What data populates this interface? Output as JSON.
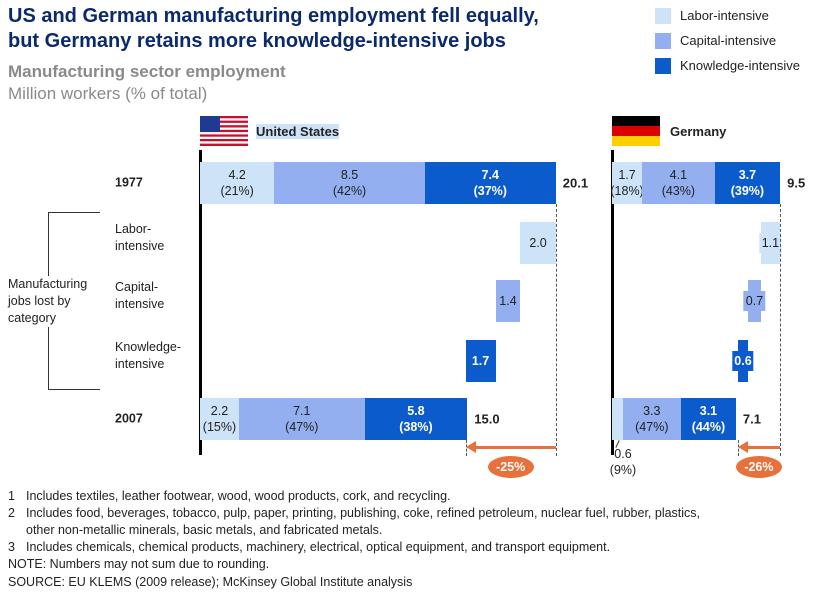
{
  "chart_data": {
    "type": "waterfall",
    "title": "US and German manufacturing employment fell equally,\nbut Germany retains more knowledge-intensive jobs",
    "subtitle": "Manufacturing sector employment",
    "unit": "Million workers (% of total)",
    "segments": [
      {
        "name": "Labor-intensive",
        "color": "#cde3f7"
      },
      {
        "name": "Capital-intensive",
        "color": "#93aff0"
      },
      {
        "name": "Knowledge-intensive",
        "color": "#0c5bcc"
      }
    ],
    "rows": [
      "1977",
      "Labor-\nintensive",
      "Capital-\nintensive",
      "Knowledge-\nintensive",
      "2007"
    ],
    "group_label": "Manufacturing\njobs lost by\ncategory",
    "panels": [
      {
        "name": "United States",
        "start": {
          "values": [
            4.2,
            8.5,
            7.4
          ],
          "share_labels": [
            "(21%)",
            "(42%)",
            "(37%)"
          ],
          "total": 20.1
        },
        "lost": {
          "values": [
            2.0,
            1.4,
            1.7
          ],
          "value_labels": [
            "2.0",
            "1.4",
            "1.7"
          ]
        },
        "end": {
          "values": [
            2.2,
            7.1,
            5.8
          ],
          "share_labels": [
            "(15%)",
            "(47%)",
            "(38%)"
          ],
          "total": 15.0,
          "total_label": "15.0"
        },
        "change_label": "-25%"
      },
      {
        "name": "Germany",
        "start": {
          "values": [
            1.7,
            4.1,
            3.7
          ],
          "share_labels": [
            "(18%)",
            "(43%)",
            "(39%)"
          ],
          "total": 9.5
        },
        "lost": {
          "values": [
            1.1,
            0.7,
            0.6
          ]
        },
        "end": {
          "values": [
            0.6,
            3.3,
            3.1
          ],
          "share_labels": [
            "(9%)",
            "(47%)",
            "(44%)"
          ],
          "total": 7.1
        },
        "change_label": "-26%"
      }
    ],
    "notes": [
      {
        "marker": "1",
        "text": "Includes textiles, leather footwear, wood, wood products, cork, and recycling."
      },
      {
        "marker": "2",
        "text": "Includes food, beverages, tobacco, pulp, paper, printing, publishing, coke, refined petroleum, nuclear fuel, rubber, plastics,\nother non-metallic minerals, basic metals, and fabricated metals."
      },
      {
        "marker": "3",
        "text": "Includes chemicals, chemical products, machinery, electrical, optical equipment, and transport equipment."
      }
    ],
    "note": "NOTE: Numbers may not sum due to rounding.",
    "source": "SOURCE: EU KLEMS (2009 release); McKinsey Global Institute analysis"
  }
}
